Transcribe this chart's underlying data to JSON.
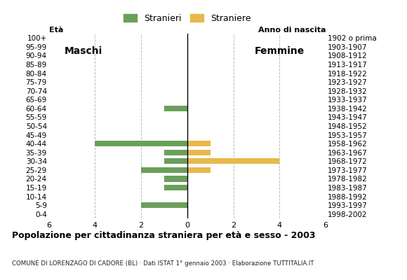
{
  "age_groups": [
    "100+",
    "95-99",
    "90-94",
    "85-89",
    "80-84",
    "75-79",
    "70-74",
    "65-69",
    "60-64",
    "55-59",
    "50-54",
    "45-49",
    "40-44",
    "35-39",
    "30-34",
    "25-29",
    "20-24",
    "15-19",
    "10-14",
    "5-9",
    "0-4"
  ],
  "birth_years": [
    "1902 o prima",
    "1903-1907",
    "1908-1912",
    "1913-1917",
    "1918-1922",
    "1923-1927",
    "1928-1932",
    "1933-1937",
    "1938-1942",
    "1943-1947",
    "1948-1952",
    "1953-1957",
    "1958-1962",
    "1963-1967",
    "1968-1972",
    "1973-1977",
    "1978-1982",
    "1983-1987",
    "1988-1992",
    "1993-1997",
    "1998-2002"
  ],
  "males": [
    0,
    0,
    0,
    0,
    0,
    0,
    0,
    0,
    1,
    0,
    0,
    0,
    4,
    1,
    1,
    2,
    1,
    1,
    0,
    2,
    0
  ],
  "females": [
    0,
    0,
    0,
    0,
    0,
    0,
    0,
    0,
    0,
    0,
    0,
    0,
    1,
    1,
    4,
    1,
    0,
    0,
    0,
    0,
    0
  ],
  "color_male": "#6a9f5b",
  "color_female": "#e8b84b",
  "title": "Popolazione per cittadinanza straniera per età e sesso - 2003",
  "subtitle": "COMUNE DI LORENZAGO DI CADORE (BL) · Dati ISTAT 1° gennaio 2003 · Elaborazione TUTTITALIA.IT",
  "legend_male": "Stranieri",
  "legend_female": "Straniere",
  "label_eta": "Età",
  "label_maschi": "Maschi",
  "label_femmine": "Femmine",
  "label_anno": "Anno di nascita",
  "xlim": 6,
  "background_color": "#ffffff",
  "grid_color": "#bbbbbb"
}
